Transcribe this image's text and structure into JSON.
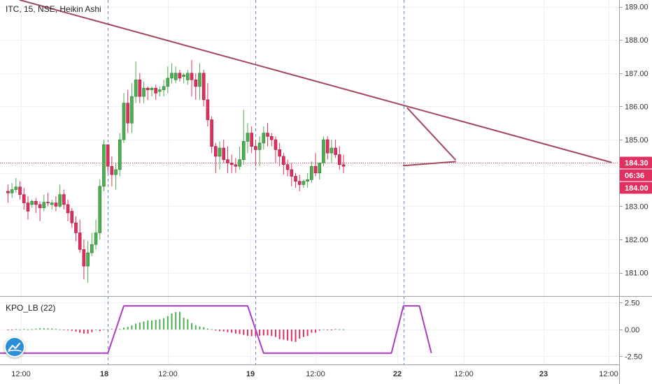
{
  "header": {
    "title": "ITC, 15, NSE, Heikin Ashi"
  },
  "indicator": {
    "title": "KPO_LB (22)"
  },
  "colors": {
    "up": "#4caf50",
    "down": "#e0305f",
    "trendline": "#a3485f",
    "kpo_line": "#b03bc7",
    "price_line": "#e0305f",
    "session_line": "#5b84d6",
    "grid": "#eef0f3",
    "axis_text": "#333333"
  },
  "price_axis": {
    "ticks": [
      "189.00",
      "188.00",
      "187.00",
      "186.00",
      "185.00",
      "184.00",
      "183.00",
      "182.00",
      "181.00"
    ],
    "labels": [
      {
        "text": "184.30",
        "kind": "last-price",
        "value": 184.3
      },
      {
        "text": "06:36",
        "kind": "countdown"
      },
      {
        "text": "184.00",
        "kind": "price-marker",
        "value": 184.0
      }
    ]
  },
  "indicator_axis": {
    "ticks": [
      "2.50",
      "0.00",
      "-2.50"
    ]
  },
  "time_axis": {
    "ticks": [
      "12:00",
      "18",
      "12:00",
      "19",
      "12:00",
      "22",
      "12:00",
      "23",
      "12:00"
    ]
  },
  "chart_data": [
    {
      "type": "candlestick",
      "title": "ITC, 15, NSE, Heikin Ashi",
      "ylim": [
        180.3,
        189.2
      ],
      "x_range": [
        -2,
        153
      ],
      "session_breaks": [
        25,
        62,
        99
      ],
      "current_price": 184.3,
      "ohlc": [
        [
          183.45,
          183.65,
          183.1,
          183.4
        ],
        [
          183.4,
          183.7,
          183.25,
          183.5
        ],
        [
          183.5,
          183.85,
          183.4,
          183.58
        ],
        [
          183.58,
          183.75,
          183.2,
          183.35
        ],
        [
          183.35,
          183.55,
          182.9,
          183.1
        ],
        [
          183.1,
          183.3,
          182.6,
          182.85
        ],
        [
          183.05,
          183.2,
          182.95,
          183.15
        ],
        [
          183.15,
          183.25,
          182.8,
          183.05
        ],
        [
          183.05,
          183.15,
          182.55,
          182.95
        ],
        [
          182.95,
          183.35,
          182.85,
          183.12
        ],
        [
          183.12,
          183.4,
          183.0,
          183.1
        ],
        [
          183.05,
          183.2,
          182.9,
          183.1
        ],
        [
          183.1,
          183.3,
          182.85,
          183.0
        ],
        [
          183.0,
          183.65,
          182.95,
          183.35
        ],
        [
          183.35,
          183.5,
          182.9,
          183.05
        ],
        [
          183.05,
          183.2,
          182.55,
          182.8
        ],
        [
          182.85,
          182.95,
          182.35,
          182.5
        ],
        [
          182.5,
          182.7,
          181.95,
          182.2
        ],
        [
          182.2,
          182.6,
          181.6,
          181.7
        ],
        [
          181.7,
          182.0,
          180.8,
          181.2
        ],
        [
          181.2,
          181.95,
          180.7,
          181.6
        ],
        [
          181.6,
          182.2,
          181.5,
          181.85
        ],
        [
          181.85,
          182.6,
          181.7,
          182.2
        ],
        [
          182.2,
          183.8,
          182.0,
          183.6
        ],
        [
          183.6,
          185.0,
          183.45,
          184.85
        ],
        [
          184.85,
          184.85,
          184.0,
          184.2
        ],
        [
          184.2,
          184.5,
          183.6,
          183.95
        ],
        [
          183.95,
          184.3,
          183.5,
          184.1
        ],
        [
          184.1,
          185.2,
          183.9,
          185.0
        ],
        [
          185.0,
          186.4,
          184.9,
          186.1
        ],
        [
          186.1,
          186.5,
          185.2,
          185.5
        ],
        [
          185.5,
          186.7,
          185.2,
          186.3
        ],
        [
          186.3,
          187.35,
          186.1,
          186.8
        ],
        [
          186.8,
          187.0,
          186.1,
          186.3
        ],
        [
          186.3,
          186.75,
          186.1,
          186.55
        ],
        [
          186.55,
          186.6,
          186.2,
          186.5
        ],
        [
          186.5,
          186.6,
          186.3,
          186.55
        ],
        [
          186.55,
          186.65,
          186.2,
          186.4
        ],
        [
          186.45,
          186.6,
          186.3,
          186.5
        ],
        [
          186.5,
          186.8,
          186.3,
          186.6
        ],
        [
          186.6,
          187.2,
          186.4,
          186.85
        ],
        [
          186.85,
          187.3,
          186.7,
          187.0
        ],
        [
          186.8,
          187.2,
          186.7,
          187.0
        ],
        [
          187.0,
          187.1,
          186.75,
          186.85
        ],
        [
          186.9,
          187.0,
          186.7,
          186.95
        ],
        [
          186.8,
          187.1,
          186.65,
          187.0
        ],
        [
          187.0,
          187.4,
          186.3,
          186.8
        ],
        [
          186.8,
          187.0,
          186.2,
          186.6
        ],
        [
          186.6,
          187.3,
          186.2,
          187.0
        ],
        [
          187.0,
          187.1,
          186.0,
          186.2
        ],
        [
          186.2,
          186.7,
          185.4,
          185.6
        ],
        [
          185.6,
          185.7,
          184.6,
          184.8
        ],
        [
          184.8,
          184.9,
          184.0,
          184.5
        ],
        [
          184.5,
          184.95,
          184.1,
          184.75
        ],
        [
          184.75,
          185.0,
          184.3,
          184.4
        ],
        [
          184.4,
          184.8,
          184.0,
          184.3
        ],
        [
          184.3,
          184.55,
          184.0,
          184.25
        ],
        [
          184.25,
          184.45,
          184.0,
          184.2
        ],
        [
          184.2,
          184.8,
          184.1,
          184.4
        ],
        [
          184.4,
          185.9,
          184.25,
          184.95
        ],
        [
          184.95,
          185.5,
          184.6,
          185.2
        ],
        [
          185.2,
          185.4,
          184.6,
          184.8
        ],
        [
          184.8,
          185.0,
          184.2,
          184.7
        ],
        [
          184.7,
          185.1,
          184.2,
          184.9
        ],
        [
          184.9,
          185.4,
          184.7,
          185.2
        ],
        [
          185.2,
          185.5,
          184.8,
          185.1
        ],
        [
          185.1,
          185.2,
          184.8,
          185.0
        ],
        [
          185.0,
          185.1,
          184.3,
          184.7
        ],
        [
          184.7,
          184.9,
          184.2,
          184.5
        ],
        [
          184.5,
          184.6,
          183.95,
          184.25
        ],
        [
          184.25,
          184.4,
          183.9,
          184.1
        ],
        [
          184.1,
          184.3,
          183.6,
          183.9
        ],
        [
          183.9,
          184.0,
          183.55,
          183.75
        ],
        [
          183.75,
          183.95,
          183.45,
          183.65
        ],
        [
          183.65,
          183.8,
          183.55,
          183.75
        ],
        [
          183.75,
          184.0,
          183.55,
          183.8
        ],
        [
          183.8,
          184.35,
          183.7,
          184.2
        ],
        [
          184.2,
          184.6,
          183.9,
          184.0
        ],
        [
          184.0,
          184.3,
          183.8,
          184.3
        ],
        [
          184.3,
          185.1,
          184.2,
          185.0
        ],
        [
          185.0,
          185.1,
          184.4,
          184.6
        ],
        [
          184.6,
          185.0,
          184.3,
          184.75
        ],
        [
          184.75,
          185.0,
          184.45,
          184.55
        ],
        [
          184.55,
          184.8,
          184.1,
          184.25
        ],
        [
          184.25,
          184.55,
          184.0,
          184.2
        ]
      ],
      "trendlines": [
        {
          "name": "descending-resistance",
          "points": [
            [
              3,
              189.2
            ],
            [
              151,
              184.32
            ]
          ]
        },
        {
          "name": "pennant-upper",
          "points": [
            [
              100,
              185.95
            ],
            [
              112,
              184.4
            ]
          ]
        },
        {
          "name": "pennant-lower",
          "points": [
            [
              99,
              184.22
            ],
            [
              112,
              184.34
            ]
          ]
        }
      ]
    },
    {
      "type": "bar",
      "title": "KPO_LB (22)",
      "ylim": [
        -3.25,
        3.05
      ],
      "hist": [
        -0.05,
        -0.03,
        0.04,
        0.01,
        0.05,
        0.02,
        0.04,
        0.08,
        0.12,
        0.12,
        0.11,
        0.1,
        0.05,
        0.02,
        -0.02,
        -0.05,
        -0.12,
        -0.2,
        -0.3,
        -0.38,
        -0.38,
        -0.25,
        0.0,
        -0.15,
        0.02,
        -0.02,
        0.06,
        -0.04,
        0.05,
        0.18,
        0.25,
        0.38,
        0.55,
        0.65,
        0.75,
        0.85,
        0.85,
        0.9,
        0.95,
        1.05,
        1.25,
        1.5,
        1.62,
        1.65,
        1.1,
        0.95,
        0.6,
        0.4,
        0.28,
        0.22,
        0.1,
        0.04,
        -0.1,
        -0.15,
        -0.18,
        -0.25,
        -0.3,
        -0.38,
        -0.42,
        -0.5,
        -0.58,
        -0.62,
        -0.6,
        -0.58,
        -0.55,
        -0.55,
        -0.6,
        -0.7,
        -0.9,
        -0.95,
        -1.02,
        -1.1,
        -1.15,
        -0.85,
        -0.7,
        -0.6,
        -0.3,
        -0.3,
        -0.1,
        0.02,
        -0.05,
        -0.03,
        0.05,
        0.03,
        0.02
      ],
      "kpo_line": [
        [
          -2,
          -2.2
        ],
        [
          25,
          -2.2
        ],
        [
          29,
          2.2
        ],
        [
          60,
          2.2
        ],
        [
          64,
          -2.2
        ],
        [
          96,
          -2.2
        ],
        [
          99,
          2.2
        ],
        [
          103,
          2.2
        ],
        [
          106,
          -2.2
        ]
      ]
    }
  ]
}
